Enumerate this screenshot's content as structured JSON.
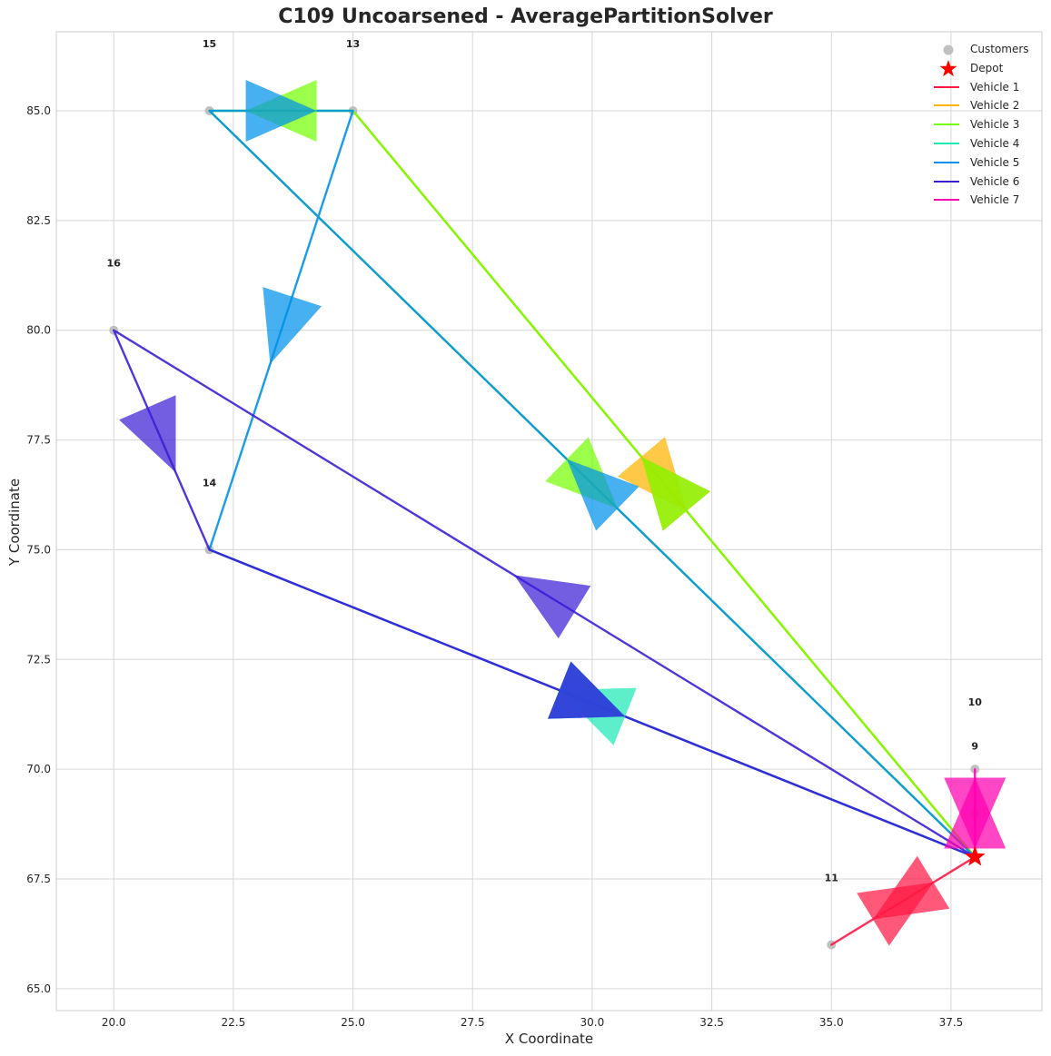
{
  "chart_data": {
    "type": "scatter",
    "title": "C109 Uncoarsened - AveragePartitionSolver",
    "xlabel": "X Coordinate",
    "ylabel": "Y Coordinate",
    "xlim": [
      18.8,
      39.4
    ],
    "ylim": [
      64.5,
      86.8
    ],
    "x_ticks": [
      20.0,
      22.5,
      25.0,
      27.5,
      30.0,
      32.5,
      35.0,
      37.5
    ],
    "y_ticks": [
      65.0,
      67.5,
      70.0,
      72.5,
      75.0,
      77.5,
      80.0,
      82.5,
      85.0
    ],
    "x_tick_labels": [
      "20.0",
      "22.5",
      "25.0",
      "27.5",
      "30.0",
      "32.5",
      "35.0",
      "37.5"
    ],
    "y_tick_labels": [
      "65.0",
      "67.5",
      "70.0",
      "72.5",
      "75.0",
      "77.5",
      "80.0",
      "82.5",
      "85.0"
    ],
    "grid": true,
    "legend_position": "top-right",
    "depot": {
      "x": 38,
      "y": 68,
      "color": "#ff0000"
    },
    "customers": [
      {
        "id": "10",
        "x": 38,
        "y": 70
      },
      {
        "id": "9",
        "x": 38,
        "y": 69
      },
      {
        "id": "11",
        "x": 35,
        "y": 66
      },
      {
        "id": "13",
        "x": 25,
        "y": 85
      },
      {
        "id": "15",
        "x": 22,
        "y": 85
      },
      {
        "id": "16",
        "x": 20,
        "y": 80
      },
      {
        "id": "14",
        "x": 22,
        "y": 75
      }
    ],
    "customer_color": "#c0c0c0",
    "legend": [
      "Customers",
      "Depot",
      "Vehicle 1",
      "Vehicle 2",
      "Vehicle 3",
      "Vehicle 4",
      "Vehicle 5",
      "Vehicle 6",
      "Vehicle 7"
    ],
    "series": [
      {
        "name": "Vehicle 1",
        "color": "#ff1744",
        "route": [
          [
            38,
            68
          ],
          [
            35,
            66
          ],
          [
            38,
            68
          ]
        ]
      },
      {
        "name": "Vehicle 2",
        "color": "#ffb300",
        "route": [
          [
            38,
            68
          ],
          [
            25,
            85
          ],
          [
            38,
            68
          ]
        ]
      },
      {
        "name": "Vehicle 3",
        "color": "#76ff03",
        "route": [
          [
            38,
            68
          ],
          [
            25,
            85
          ],
          [
            22,
            85
          ],
          [
            38,
            68
          ]
        ]
      },
      {
        "name": "Vehicle 4",
        "color": "#1de9b6",
        "route": [
          [
            38,
            68
          ],
          [
            22,
            75
          ],
          [
            38,
            68
          ]
        ]
      },
      {
        "name": "Vehicle 5",
        "color": "#0091ea",
        "route": [
          [
            38,
            68
          ],
          [
            22,
            85
          ],
          [
            25,
            85
          ],
          [
            22,
            75
          ],
          [
            38,
            68
          ]
        ]
      },
      {
        "name": "Vehicle 6",
        "color": "#3d1fd6",
        "route": [
          [
            38,
            68
          ],
          [
            20,
            80
          ],
          [
            22,
            75
          ],
          [
            38,
            68
          ]
        ]
      },
      {
        "name": "Vehicle 7",
        "color": "#ff00b0",
        "route": [
          [
            38,
            68
          ],
          [
            38,
            70
          ],
          [
            38,
            68
          ]
        ]
      }
    ]
  }
}
